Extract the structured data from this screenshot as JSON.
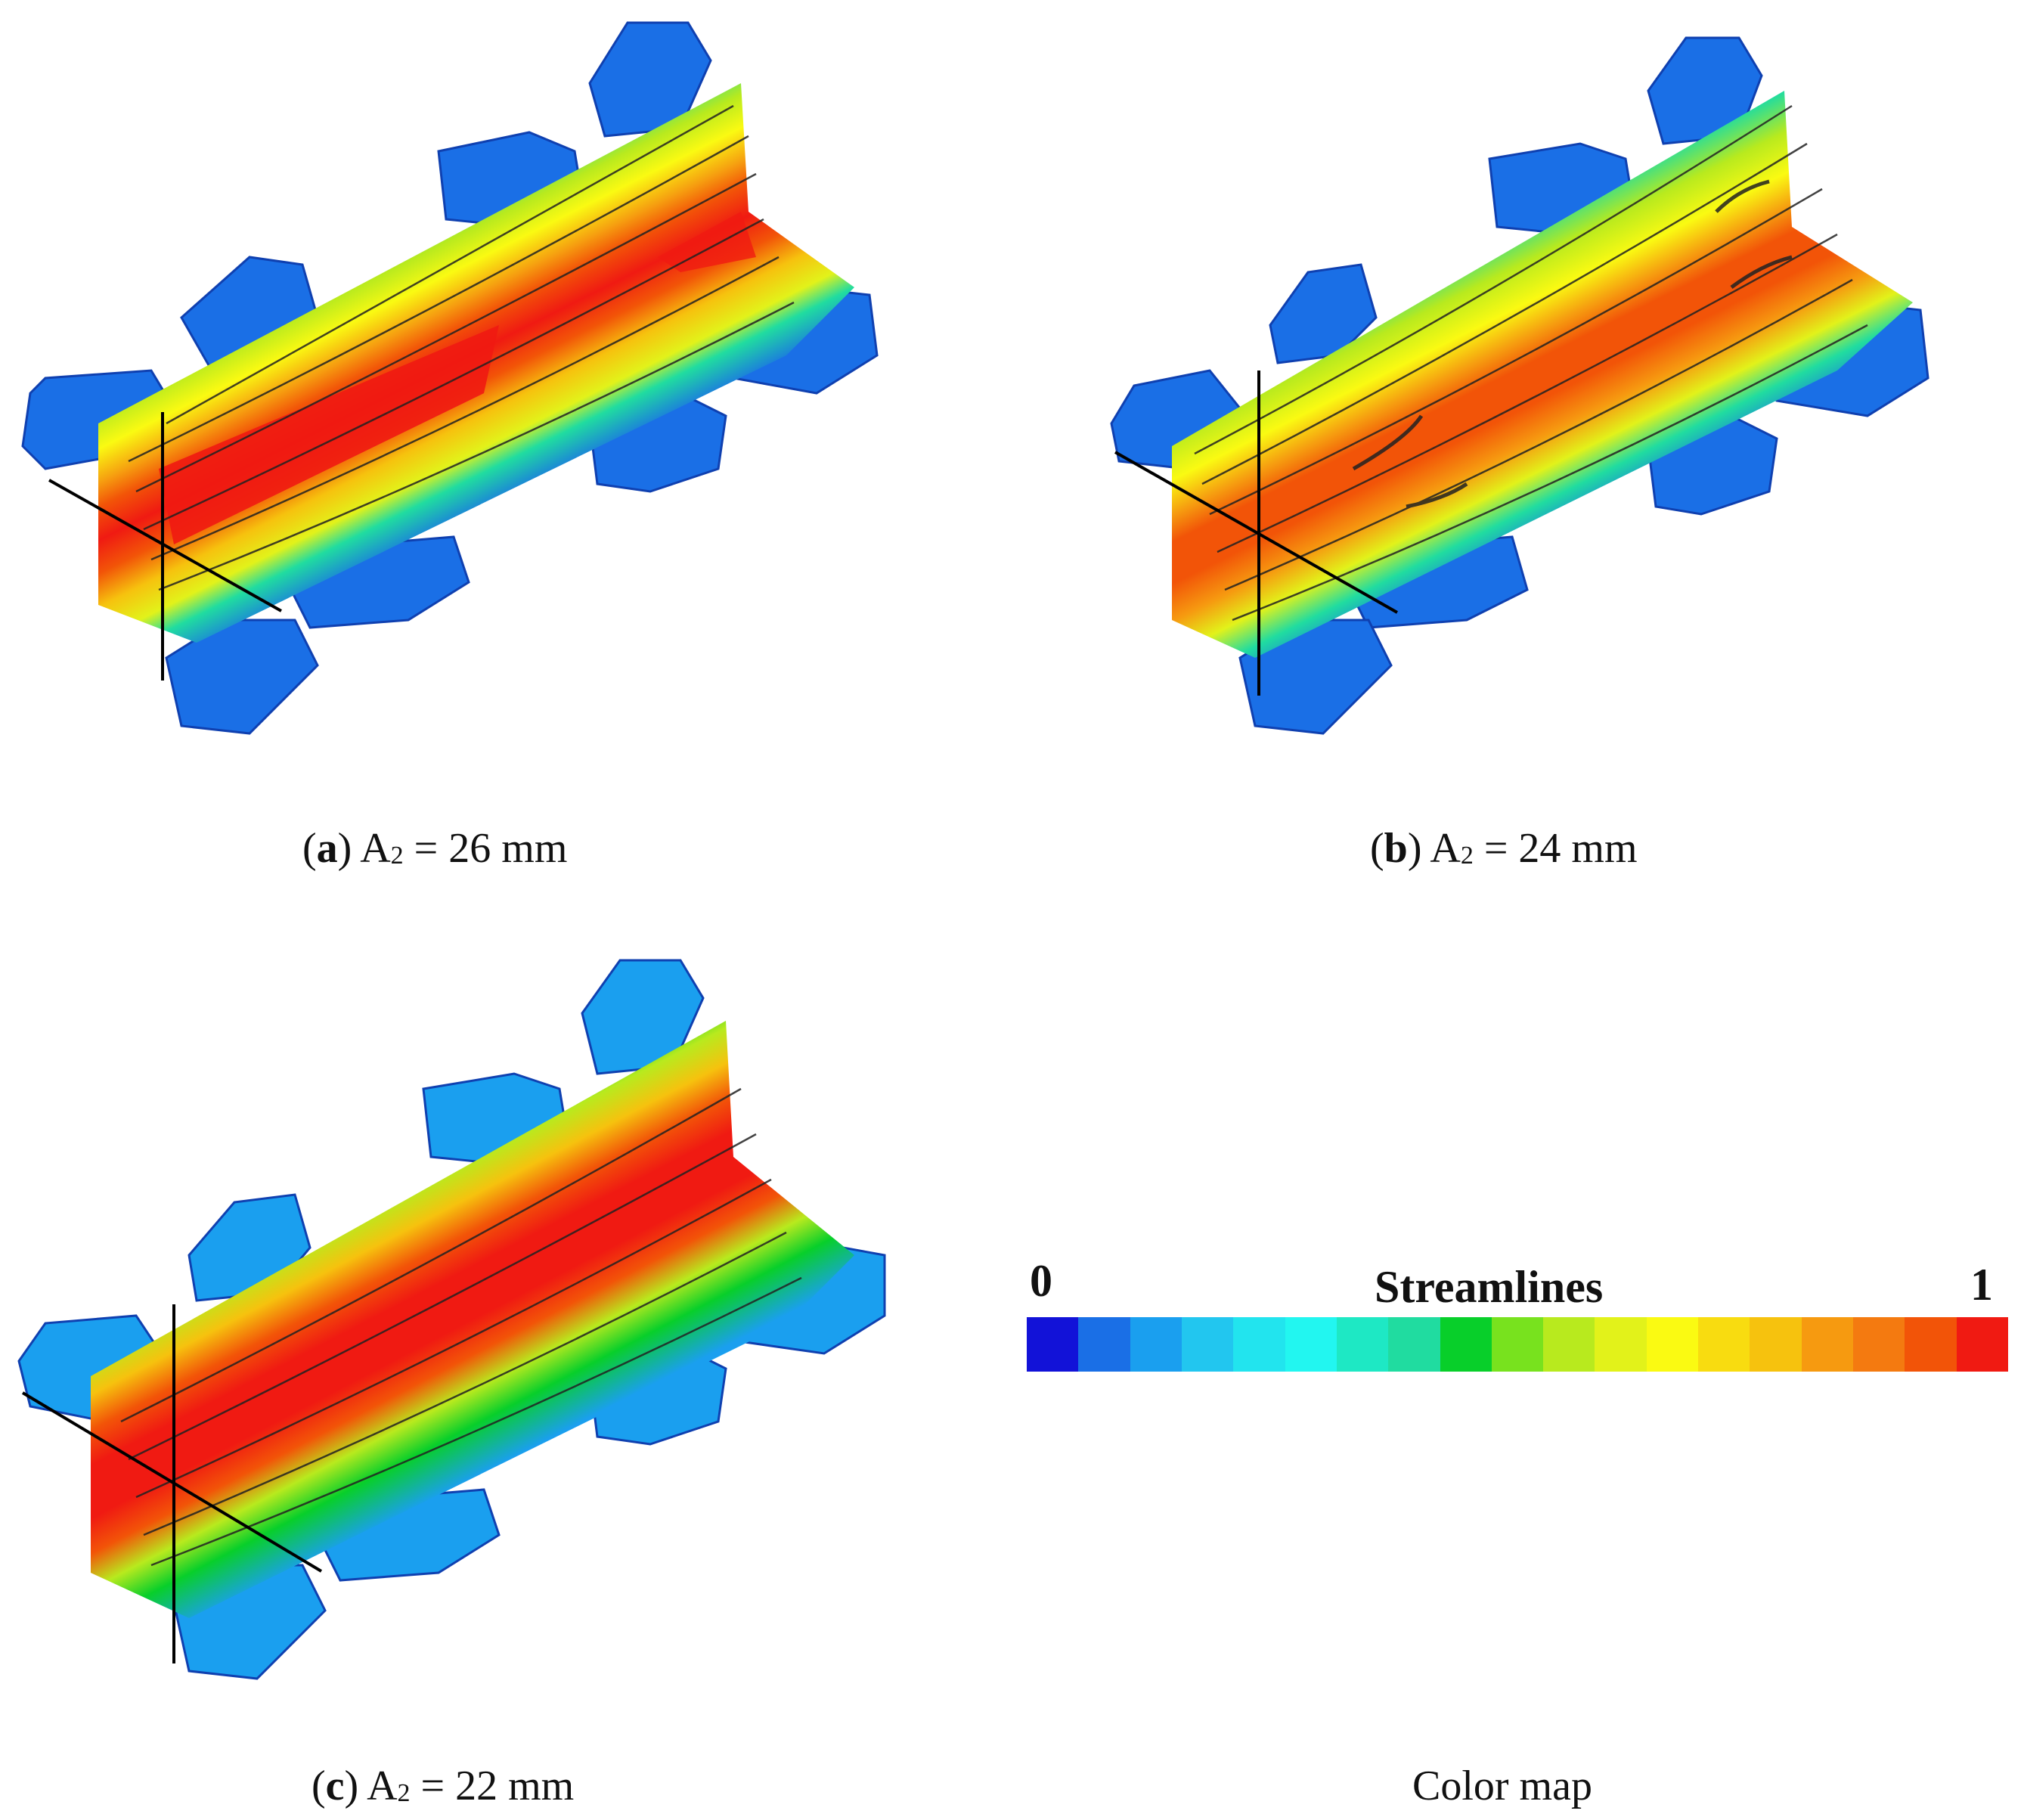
{
  "panels": [
    {
      "id": "a",
      "letter": "a",
      "label_prefix": "A",
      "subscript": "2",
      "value_text": "= 26 mm"
    },
    {
      "id": "b",
      "letter": "b",
      "label_prefix": "A",
      "subscript": "2",
      "value_text": "= 24 mm"
    },
    {
      "id": "c",
      "letter": "c",
      "label_prefix": "A",
      "subscript": "2",
      "value_text": "= 22 mm"
    }
  ],
  "colormap": {
    "caption": "Color map",
    "title": "Streamlines",
    "min_label": "0",
    "max_label": "1",
    "colors": [
      "#1212d8",
      "#1a6fe6",
      "#1a9fef",
      "#22c6ef",
      "#22e4ee",
      "#22f6f0",
      "#1ee8c4",
      "#20dca0",
      "#08cf2a",
      "#78e21e",
      "#b8ea1e",
      "#e2f21a",
      "#fafa12",
      "#f8dc10",
      "#f6c20e",
      "#f69a10",
      "#f47a10",
      "#f25408",
      "#f01a12"
    ]
  }
}
